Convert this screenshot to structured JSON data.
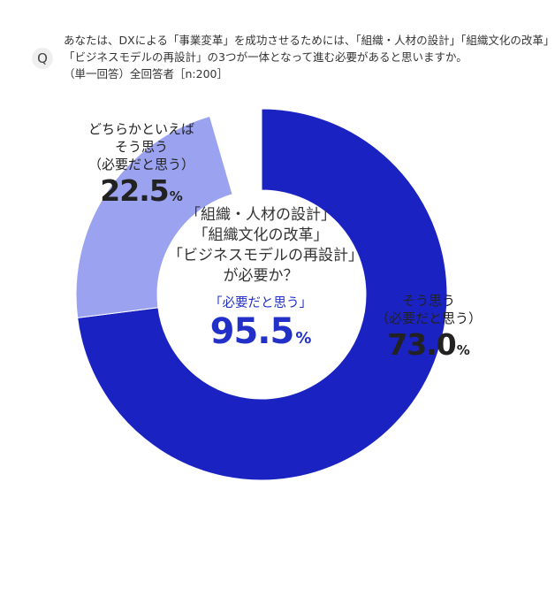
{
  "question": {
    "badge": "Q",
    "lines": [
      "あなたは、DXによる「事業変革」を成功させるためには、「組織・人材の設計」「組織文化の改革」",
      "「ビジネスモデルの再設計」の3つが一体となって進む必要があると思いますか。",
      "（単一回答）全回答者［n:200］"
    ]
  },
  "center": {
    "title_lines": [
      "「組織・人材の設計」",
      "「組織文化の改革」",
      "「ビジネスモデルの再設計」",
      "が必要か？"
    ],
    "label": "「必要だと思う」",
    "value": "95.5",
    "unit": "%"
  },
  "chart_data": {
    "type": "pie",
    "donut": true,
    "start": "top",
    "direction": "clockwise",
    "total": 100,
    "slices": [
      {
        "label_lines": [
          "そう思う",
          "（必要だと思う）"
        ],
        "value": 73.0,
        "value_text": "73.0",
        "unit": "%",
        "color": "#1a22c2"
      },
      {
        "label_lines": [
          "どちらかといえば",
          "そう思う",
          "（必要だと思う）"
        ],
        "value": 22.5,
        "value_text": "22.5",
        "unit": "%",
        "color": "#9ba3f0"
      }
    ],
    "remainder_color": "#ffffff"
  }
}
